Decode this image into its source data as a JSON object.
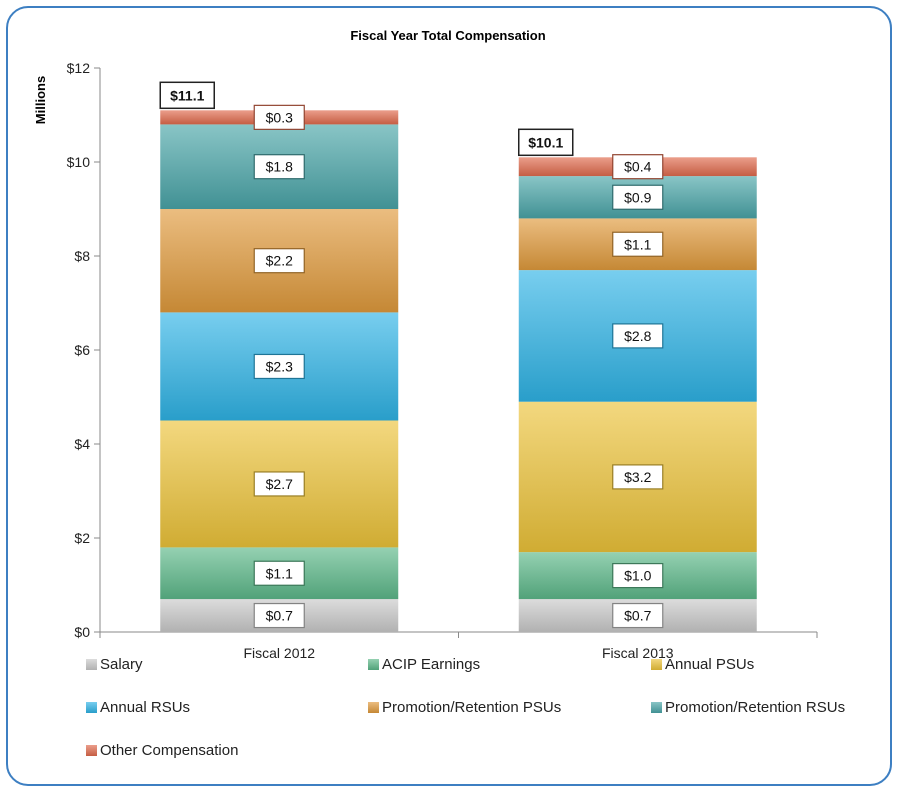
{
  "chart_data": {
    "type": "bar",
    "stacked": true,
    "title": "Fiscal Year Total Compensation",
    "ylabel": "Millions",
    "xlabel": "",
    "ylim": [
      0,
      12
    ],
    "yticks": [
      0,
      2,
      4,
      6,
      8,
      10,
      12
    ],
    "ytick_labels": [
      "$0",
      "$2",
      "$4",
      "$6",
      "$8",
      "$10",
      "$12"
    ],
    "categories": [
      "Fiscal 2012",
      "Fiscal 2013"
    ],
    "series": [
      {
        "name": "Salary",
        "values": [
          0.7,
          0.7
        ],
        "labels": [
          "$0.7",
          "$0.7"
        ],
        "color": "#c9c9c9"
      },
      {
        "name": "ACIP Earnings",
        "values": [
          1.1,
          1.0
        ],
        "labels": [
          "$1.1",
          "$1.0"
        ],
        "color": "#5cb889"
      },
      {
        "name": "Annual PSUs",
        "values": [
          2.7,
          3.2
        ],
        "labels": [
          "$2.7",
          "$3.2"
        ],
        "color": "#ecc33a"
      },
      {
        "name": "Annual RSUs",
        "values": [
          2.3,
          2.8
        ],
        "labels": [
          "$2.3",
          "$2.8"
        ],
        "color": "#2fb4e6"
      },
      {
        "name": "Promotion/Retention PSUs",
        "values": [
          2.2,
          1.1
        ],
        "labels": [
          "$2.2",
          "$1.1"
        ],
        "color": "#e09a3c"
      },
      {
        "name": "Promotion/Retention RSUs",
        "values": [
          1.8,
          0.9
        ],
        "labels": [
          "$1.8",
          "$0.9"
        ],
        "color": "#4aa5a8"
      },
      {
        "name": "Other Compensation",
        "values": [
          0.3,
          0.4
        ],
        "labels": [
          "$0.3",
          "$0.4"
        ],
        "color": "#e06a4c"
      }
    ],
    "totals": [
      11.1,
      10.1
    ],
    "total_labels": [
      "$11.1",
      "$10.1"
    ],
    "legend_position": "bottom",
    "grid": false
  }
}
